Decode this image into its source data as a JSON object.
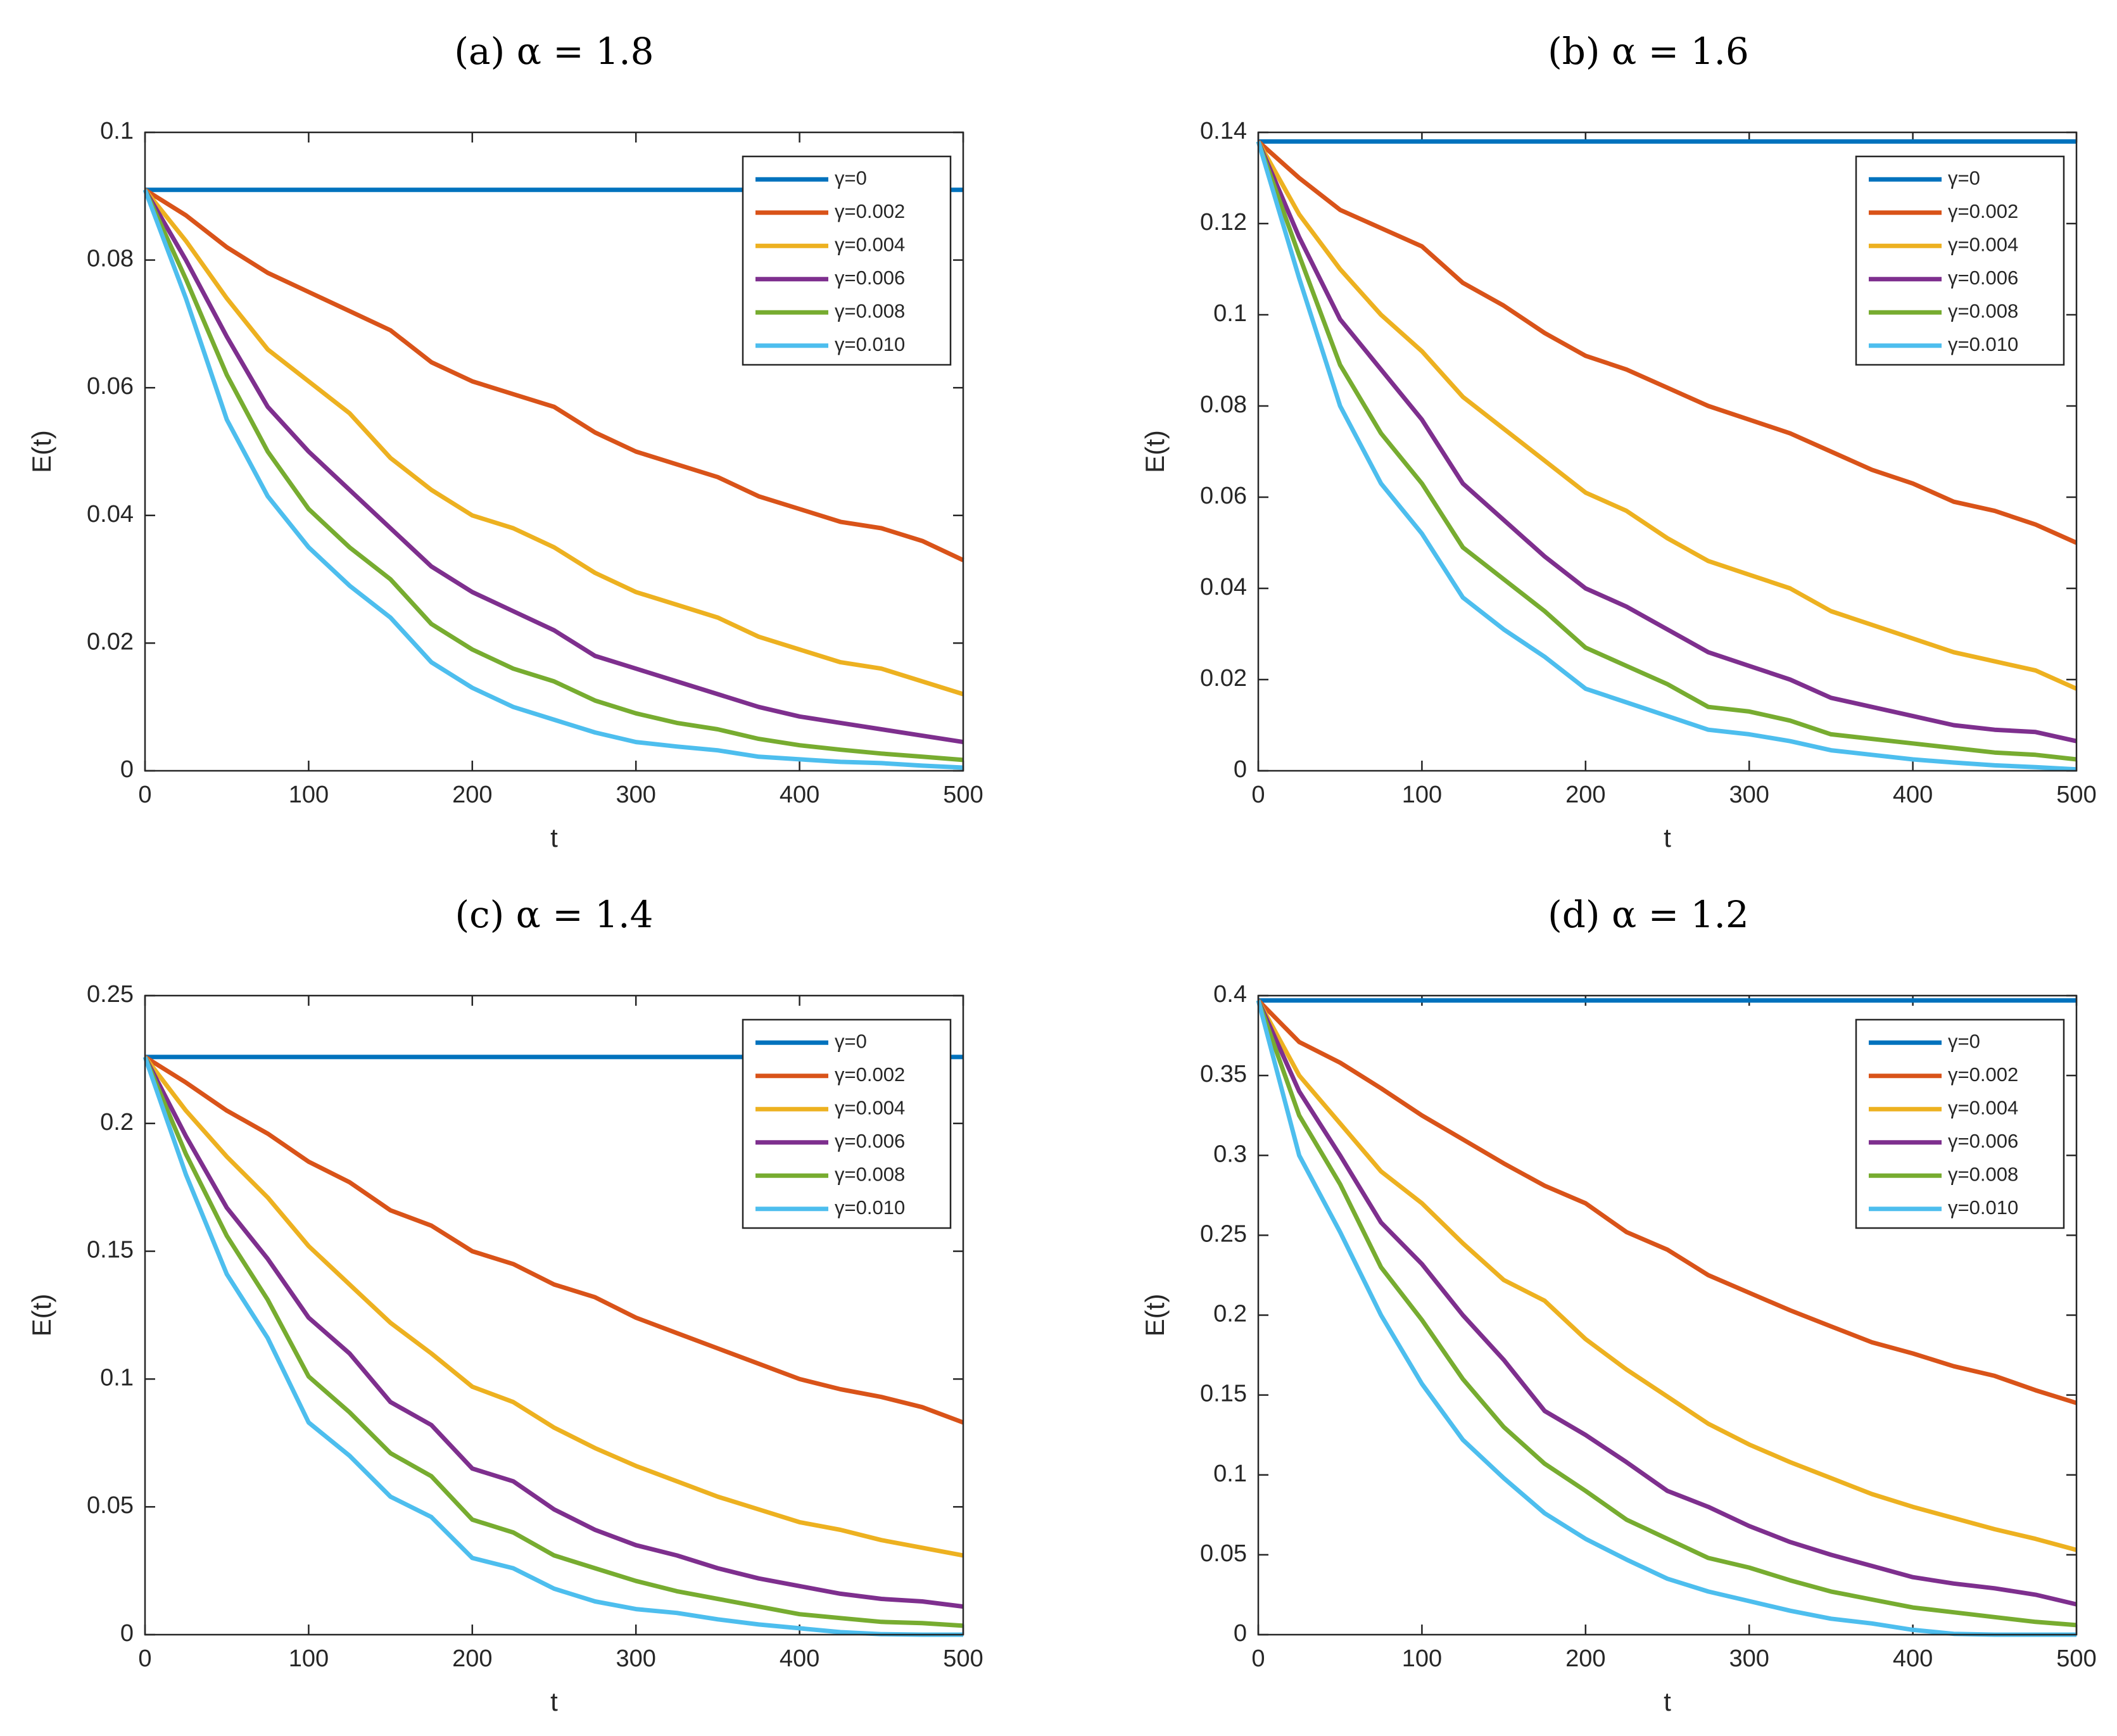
{
  "chart_data": [
    {
      "type": "line",
      "title": "(a) α = 1.8",
      "xlabel": "t",
      "ylabel": "E(t)",
      "xlim": [
        0,
        500
      ],
      "ylim": [
        0,
        0.1
      ],
      "xticks": [
        0,
        100,
        200,
        300,
        400,
        500
      ],
      "xtick_labels": [
        "0",
        "100",
        "200",
        "300",
        "400",
        "500"
      ],
      "yticks": [
        0,
        0.02,
        0.04,
        0.06,
        0.08,
        0.1
      ],
      "ytick_labels": [
        "0",
        "0.02",
        "0.04",
        "0.06",
        "0.08",
        "0.1"
      ],
      "legend_position": "top-right",
      "x": [
        0,
        25,
        50,
        75,
        100,
        125,
        150,
        175,
        200,
        225,
        250,
        275,
        300,
        325,
        350,
        375,
        400,
        425,
        450,
        475,
        500
      ],
      "series": [
        {
          "name": "γ=0",
          "color": "#0072BD",
          "values": [
            0.091,
            0.091,
            0.091,
            0.091,
            0.091,
            0.091,
            0.091,
            0.091,
            0.091,
            0.091,
            0.091,
            0.091,
            0.091,
            0.091,
            0.091,
            0.091,
            0.091,
            0.091,
            0.091,
            0.091,
            0.091
          ]
        },
        {
          "name": "γ=0.002",
          "color": "#D95319",
          "values": [
            0.091,
            0.087,
            0.082,
            0.078,
            0.075,
            0.072,
            0.069,
            0.064,
            0.061,
            0.059,
            0.057,
            0.053,
            0.05,
            0.048,
            0.046,
            0.043,
            0.041,
            0.039,
            0.038,
            0.036,
            0.033
          ]
        },
        {
          "name": "γ=0.004",
          "color": "#EDB120",
          "values": [
            0.091,
            0.083,
            0.074,
            0.066,
            0.061,
            0.056,
            0.049,
            0.044,
            0.04,
            0.038,
            0.035,
            0.031,
            0.028,
            0.026,
            0.024,
            0.021,
            0.019,
            0.017,
            0.016,
            0.014,
            0.012
          ]
        },
        {
          "name": "γ=0.006",
          "color": "#7E2F8E",
          "values": [
            0.091,
            0.08,
            0.068,
            0.057,
            0.05,
            0.044,
            0.038,
            0.032,
            0.028,
            0.025,
            0.022,
            0.018,
            0.016,
            0.014,
            0.012,
            0.01,
            0.0085,
            0.0075,
            0.0065,
            0.0055,
            0.0045
          ]
        },
        {
          "name": "γ=0.008",
          "color": "#77AC30",
          "values": [
            0.091,
            0.077,
            0.062,
            0.05,
            0.041,
            0.035,
            0.03,
            0.023,
            0.019,
            0.016,
            0.014,
            0.011,
            0.009,
            0.0075,
            0.0065,
            0.005,
            0.004,
            0.0033,
            0.0027,
            0.0022,
            0.0017
          ]
        },
        {
          "name": "γ=0.010",
          "color": "#4DBEEE",
          "values": [
            0.091,
            0.074,
            0.055,
            0.043,
            0.035,
            0.029,
            0.024,
            0.017,
            0.013,
            0.01,
            0.008,
            0.006,
            0.0045,
            0.0038,
            0.0032,
            0.0022,
            0.0018,
            0.0014,
            0.0012,
            0.0008,
            0.0005
          ]
        }
      ]
    },
    {
      "type": "line",
      "title": "(b) α = 1.6",
      "xlabel": "t",
      "ylabel": "E(t)",
      "xlim": [
        0,
        500
      ],
      "ylim": [
        0,
        0.14
      ],
      "xticks": [
        0,
        100,
        200,
        300,
        400,
        500
      ],
      "xtick_labels": [
        "0",
        "100",
        "200",
        "300",
        "400",
        "500"
      ],
      "yticks": [
        0,
        0.02,
        0.04,
        0.06,
        0.08,
        0.1,
        0.12,
        0.14
      ],
      "ytick_labels": [
        "0",
        "0.02",
        "0.04",
        "0.06",
        "0.08",
        "0.1",
        "0.12",
        "0.14"
      ],
      "legend_position": "top-right",
      "x": [
        0,
        25,
        50,
        75,
        100,
        125,
        150,
        175,
        200,
        225,
        250,
        275,
        300,
        325,
        350,
        375,
        400,
        425,
        450,
        475,
        500
      ],
      "series": [
        {
          "name": "γ=0",
          "color": "#0072BD",
          "values": [
            0.138,
            0.138,
            0.138,
            0.138,
            0.138,
            0.138,
            0.138,
            0.138,
            0.138,
            0.138,
            0.138,
            0.138,
            0.138,
            0.138,
            0.138,
            0.138,
            0.138,
            0.138,
            0.138,
            0.138,
            0.138
          ]
        },
        {
          "name": "γ=0.002",
          "color": "#D95319",
          "values": [
            0.138,
            0.13,
            0.123,
            0.119,
            0.115,
            0.107,
            0.102,
            0.096,
            0.091,
            0.088,
            0.084,
            0.08,
            0.077,
            0.074,
            0.07,
            0.066,
            0.063,
            0.059,
            0.057,
            0.054,
            0.05
          ]
        },
        {
          "name": "γ=0.004",
          "color": "#EDB120",
          "values": [
            0.138,
            0.122,
            0.11,
            0.1,
            0.092,
            0.082,
            0.075,
            0.068,
            0.061,
            0.057,
            0.051,
            0.046,
            0.043,
            0.04,
            0.035,
            0.032,
            0.029,
            0.026,
            0.024,
            0.022,
            0.018
          ]
        },
        {
          "name": "γ=0.006",
          "color": "#7E2F8E",
          "values": [
            0.138,
            0.117,
            0.099,
            0.088,
            0.077,
            0.063,
            0.055,
            0.047,
            0.04,
            0.036,
            0.031,
            0.026,
            0.023,
            0.02,
            0.016,
            0.014,
            0.012,
            0.01,
            0.009,
            0.0085,
            0.0065
          ]
        },
        {
          "name": "γ=0.008",
          "color": "#77AC30",
          "values": [
            0.138,
            0.113,
            0.089,
            0.074,
            0.063,
            0.049,
            0.042,
            0.035,
            0.027,
            0.023,
            0.019,
            0.014,
            0.013,
            0.011,
            0.008,
            0.007,
            0.006,
            0.005,
            0.004,
            0.0035,
            0.0025
          ]
        },
        {
          "name": "γ=0.010",
          "color": "#4DBEEE",
          "values": [
            0.138,
            0.108,
            0.08,
            0.063,
            0.052,
            0.038,
            0.031,
            0.025,
            0.018,
            0.015,
            0.012,
            0.009,
            0.008,
            0.0065,
            0.0045,
            0.0035,
            0.0025,
            0.0018,
            0.0012,
            0.0008,
            0.0003
          ]
        }
      ]
    },
    {
      "type": "line",
      "title": "(c) α = 1.4",
      "xlabel": "t",
      "ylabel": "E(t)",
      "xlim": [
        0,
        500
      ],
      "ylim": [
        0,
        0.25
      ],
      "xticks": [
        0,
        100,
        200,
        300,
        400,
        500
      ],
      "xtick_labels": [
        "0",
        "100",
        "200",
        "300",
        "400",
        "500"
      ],
      "yticks": [
        0,
        0.05,
        0.1,
        0.15,
        0.2,
        0.25
      ],
      "ytick_labels": [
        "0",
        "0.05",
        "0.1",
        "0.15",
        "0.2",
        "0.25"
      ],
      "legend_position": "top-right",
      "x": [
        0,
        25,
        50,
        75,
        100,
        125,
        150,
        175,
        200,
        225,
        250,
        275,
        300,
        325,
        350,
        375,
        400,
        425,
        450,
        475,
        500
      ],
      "series": [
        {
          "name": "γ=0",
          "color": "#0072BD",
          "values": [
            0.226,
            0.226,
            0.226,
            0.226,
            0.226,
            0.226,
            0.226,
            0.226,
            0.226,
            0.226,
            0.226,
            0.226,
            0.226,
            0.226,
            0.226,
            0.226,
            0.226,
            0.226,
            0.226,
            0.226,
            0.226
          ]
        },
        {
          "name": "γ=0.002",
          "color": "#D95319",
          "values": [
            0.226,
            0.216,
            0.205,
            0.196,
            0.185,
            0.177,
            0.166,
            0.16,
            0.15,
            0.145,
            0.137,
            0.132,
            0.124,
            0.118,
            0.112,
            0.106,
            0.1,
            0.096,
            0.093,
            0.089,
            0.083
          ]
        },
        {
          "name": "γ=0.004",
          "color": "#EDB120",
          "values": [
            0.226,
            0.205,
            0.187,
            0.171,
            0.152,
            0.137,
            0.122,
            0.11,
            0.097,
            0.091,
            0.081,
            0.073,
            0.066,
            0.06,
            0.054,
            0.049,
            0.044,
            0.041,
            0.037,
            0.034,
            0.031
          ]
        },
        {
          "name": "γ=0.006",
          "color": "#7E2F8E",
          "values": [
            0.226,
            0.195,
            0.167,
            0.147,
            0.124,
            0.11,
            0.091,
            0.082,
            0.065,
            0.06,
            0.049,
            0.041,
            0.035,
            0.031,
            0.026,
            0.022,
            0.019,
            0.016,
            0.014,
            0.013,
            0.011
          ]
        },
        {
          "name": "γ=0.008",
          "color": "#77AC30",
          "values": [
            0.226,
            0.188,
            0.156,
            0.131,
            0.101,
            0.087,
            0.071,
            0.062,
            0.045,
            0.04,
            0.031,
            0.026,
            0.021,
            0.017,
            0.014,
            0.011,
            0.008,
            0.0065,
            0.005,
            0.0045,
            0.0035
          ]
        },
        {
          "name": "γ=0.010",
          "color": "#4DBEEE",
          "values": [
            0.226,
            0.18,
            0.141,
            0.116,
            0.083,
            0.07,
            0.054,
            0.046,
            0.03,
            0.026,
            0.018,
            0.013,
            0.01,
            0.0085,
            0.006,
            0.004,
            0.0025,
            0.001,
            0.0002,
            0,
            0
          ]
        }
      ]
    },
    {
      "type": "line",
      "title": "(d) α = 1.2",
      "xlabel": "t",
      "ylabel": "E(t)",
      "xlim": [
        0,
        500
      ],
      "ylim": [
        0,
        0.4
      ],
      "xticks": [
        0,
        100,
        200,
        300,
        400,
        500
      ],
      "xtick_labels": [
        "0",
        "100",
        "200",
        "300",
        "400",
        "500"
      ],
      "yticks": [
        0,
        0.05,
        0.1,
        0.15,
        0.2,
        0.25,
        0.3,
        0.35,
        0.4
      ],
      "ytick_labels": [
        "0",
        "0.05",
        "0.1",
        "0.15",
        "0.2",
        "0.25",
        "0.3",
        "0.35",
        "0.4"
      ],
      "legend_position": "top-right",
      "x": [
        0,
        25,
        50,
        75,
        100,
        125,
        150,
        175,
        200,
        225,
        250,
        275,
        300,
        325,
        350,
        375,
        400,
        425,
        450,
        475,
        500
      ],
      "series": [
        {
          "name": "γ=0",
          "color": "#0072BD",
          "values": [
            0.397,
            0.397,
            0.397,
            0.397,
            0.397,
            0.397,
            0.397,
            0.397,
            0.397,
            0.397,
            0.397,
            0.397,
            0.397,
            0.397,
            0.397,
            0.397,
            0.397,
            0.397,
            0.397,
            0.397,
            0.397
          ]
        },
        {
          "name": "γ=0.002",
          "color": "#D95319",
          "values": [
            0.397,
            0.371,
            0.358,
            0.342,
            0.325,
            0.31,
            0.295,
            0.281,
            0.27,
            0.252,
            0.241,
            0.225,
            0.214,
            0.203,
            0.193,
            0.183,
            0.176,
            0.168,
            0.162,
            0.153,
            0.145
          ]
        },
        {
          "name": "γ=0.004",
          "color": "#EDB120",
          "values": [
            0.397,
            0.35,
            0.32,
            0.29,
            0.27,
            0.245,
            0.222,
            0.209,
            0.185,
            0.166,
            0.149,
            0.132,
            0.119,
            0.108,
            0.098,
            0.088,
            0.08,
            0.073,
            0.066,
            0.06,
            0.053
          ]
        },
        {
          "name": "γ=0.006",
          "color": "#7E2F8E",
          "values": [
            0.397,
            0.34,
            0.3,
            0.258,
            0.232,
            0.2,
            0.172,
            0.14,
            0.125,
            0.108,
            0.09,
            0.08,
            0.068,
            0.058,
            0.05,
            0.043,
            0.036,
            0.032,
            0.029,
            0.025,
            0.019
          ]
        },
        {
          "name": "γ=0.008",
          "color": "#77AC30",
          "values": [
            0.397,
            0.325,
            0.282,
            0.23,
            0.197,
            0.16,
            0.13,
            0.107,
            0.09,
            0.072,
            0.06,
            0.048,
            0.042,
            0.034,
            0.027,
            0.022,
            0.017,
            0.014,
            0.011,
            0.008,
            0.006
          ]
        },
        {
          "name": "γ=0.010",
          "color": "#4DBEEE",
          "values": [
            0.397,
            0.3,
            0.252,
            0.2,
            0.157,
            0.122,
            0.098,
            0.076,
            0.06,
            0.047,
            0.035,
            0.027,
            0.021,
            0.015,
            0.01,
            0.007,
            0.003,
            0.0005,
            0,
            0,
            0
          ]
        }
      ]
    }
  ]
}
